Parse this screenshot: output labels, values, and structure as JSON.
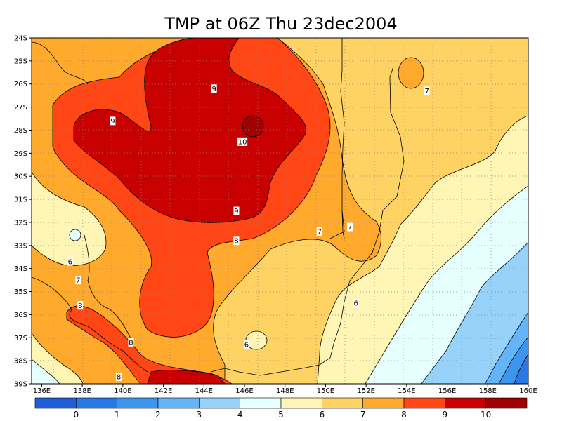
{
  "chart_data": {
    "type": "heatmap",
    "title": "TMP at 06Z Thu 23dec2004",
    "x_ticks": [
      "136E",
      "138E",
      "140E",
      "142E",
      "144E",
      "146E",
      "148E",
      "150E",
      "152E",
      "154E",
      "156E",
      "158E",
      "160E"
    ],
    "y_ticks": [
      "24S",
      "25S",
      "26S",
      "27S",
      "28S",
      "29S",
      "30S",
      "31S",
      "32S",
      "33S",
      "34S",
      "35S",
      "36S",
      "37S",
      "38S",
      "39S"
    ],
    "x_range": [
      135.5,
      160
    ],
    "y_range": [
      -39,
      -24
    ],
    "grid": true,
    "contour_levels": [
      0,
      1,
      2,
      3,
      4,
      5,
      6,
      7,
      8,
      9,
      10
    ],
    "contour_labels": [
      {
        "lon": 139.5,
        "lat": -27.6,
        "text": "9"
      },
      {
        "lon": 144.5,
        "lat": -26.2,
        "text": "9"
      },
      {
        "lon": 145.9,
        "lat": -28.5,
        "text": "10"
      },
      {
        "lon": 145.6,
        "lat": -31.5,
        "text": "9"
      },
      {
        "lon": 145.6,
        "lat": -32.8,
        "text": "8"
      },
      {
        "lon": 149.7,
        "lat": -32.4,
        "text": "7"
      },
      {
        "lon": 151.2,
        "lat": -32.2,
        "text": "7"
      },
      {
        "lon": 155.0,
        "lat": -26.3,
        "text": "7"
      },
      {
        "lon": 137.4,
        "lat": -33.7,
        "text": "6"
      },
      {
        "lon": 137.8,
        "lat": -34.5,
        "text": "7"
      },
      {
        "lon": 137.9,
        "lat": -35.6,
        "text": "8"
      },
      {
        "lon": 151.5,
        "lat": -35.5,
        "text": "6"
      },
      {
        "lon": 146.1,
        "lat": -37.3,
        "text": "6"
      },
      {
        "lon": 140.4,
        "lat": -37.2,
        "text": "8"
      },
      {
        "lon": 139.8,
        "lat": -38.7,
        "text": "8"
      }
    ],
    "colorbar": {
      "colors": [
        "#1e5ed8",
        "#2878e6",
        "#3c96ee",
        "#64b4f8",
        "#96d2fa",
        "#e6ffff",
        "#fff5b4",
        "#ffd264",
        "#ffaa2d",
        "#ff4614",
        "#c80000",
        "#a00000"
      ],
      "labels": [
        "0",
        "1",
        "2",
        "3",
        "4",
        "5",
        "6",
        "7",
        "8",
        "9",
        "10"
      ]
    }
  }
}
